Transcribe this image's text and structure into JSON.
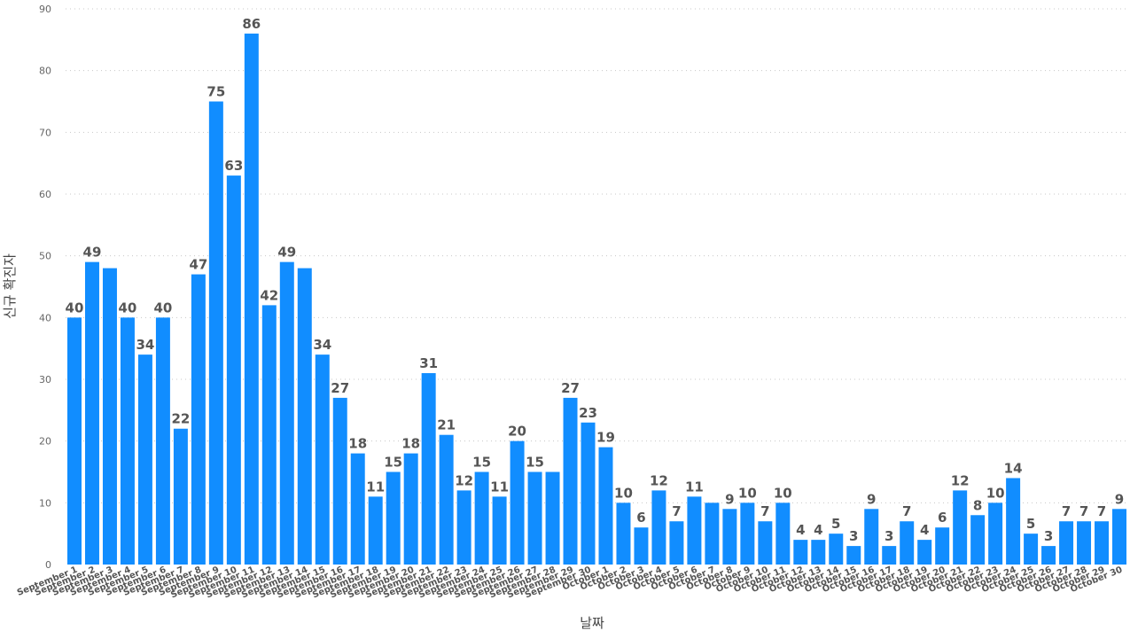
{
  "colors": {
    "bar": "#118DFF",
    "grid": "#c8c8c8",
    "label": "#555555"
  },
  "chart_data": {
    "type": "bar",
    "title": "",
    "xlabel": "날짜",
    "ylabel": "신규 확진자",
    "ylim": [
      0,
      90
    ],
    "yticks": [
      0,
      10,
      20,
      30,
      40,
      50,
      60,
      70,
      80,
      90
    ],
    "grid": true,
    "categories": [
      "September 1",
      "September 2",
      "September 3",
      "September 4",
      "September 5",
      "September 6",
      "September 7",
      "September 8",
      "September 9",
      "September 10",
      "September 11",
      "September 12",
      "September 13",
      "September 14",
      "September 15",
      "September 16",
      "September 17",
      "September 18",
      "September 19",
      "September 20",
      "September 21",
      "September 22",
      "September 23",
      "September 24",
      "September 25",
      "September 26",
      "September 27",
      "September 28",
      "September 29",
      "September 30",
      "October 1",
      "October 2",
      "October 3",
      "October 4",
      "October 5",
      "October 6",
      "October 7",
      "October 8",
      "October 9",
      "October 10",
      "October 11",
      "October 12",
      "October 13",
      "October 14",
      "October 15",
      "October 16",
      "October 17",
      "October 18",
      "October 19",
      "October 20",
      "October 21",
      "October 22",
      "October 23",
      "October 24",
      "October 25",
      "October 26",
      "October 27",
      "October 28",
      "October 29",
      "October 30"
    ],
    "values": [
      40,
      49,
      48,
      40,
      34,
      40,
      22,
      47,
      75,
      63,
      86,
      42,
      49,
      48,
      34,
      27,
      18,
      11,
      15,
      18,
      31,
      21,
      12,
      15,
      11,
      20,
      15,
      15,
      27,
      23,
      19,
      10,
      6,
      12,
      7,
      11,
      10,
      9,
      10,
      7,
      10,
      4,
      4,
      5,
      3,
      9,
      3,
      7,
      4,
      6,
      12,
      8,
      10,
      14,
      5,
      3,
      7,
      7,
      7,
      9
    ],
    "data_labels": [
      "40",
      "49",
      "",
      "40",
      "34",
      "40",
      "22",
      "47",
      "75",
      "63",
      "86",
      "42",
      "49",
      "",
      "34",
      "27",
      "18",
      "11",
      "15",
      "18",
      "31",
      "21",
      "12",
      "15",
      "11",
      "20",
      "15",
      "",
      "27",
      "23",
      "19",
      "10",
      "6",
      "12",
      "7",
      "11",
      "",
      "9",
      "10",
      "7",
      "10",
      "4",
      "4",
      "5",
      "3",
      "9",
      "3",
      "7",
      "4",
      "6",
      "12",
      "8",
      "10",
      "14",
      "5",
      "3",
      "7",
      "7",
      "7",
      "9"
    ]
  }
}
